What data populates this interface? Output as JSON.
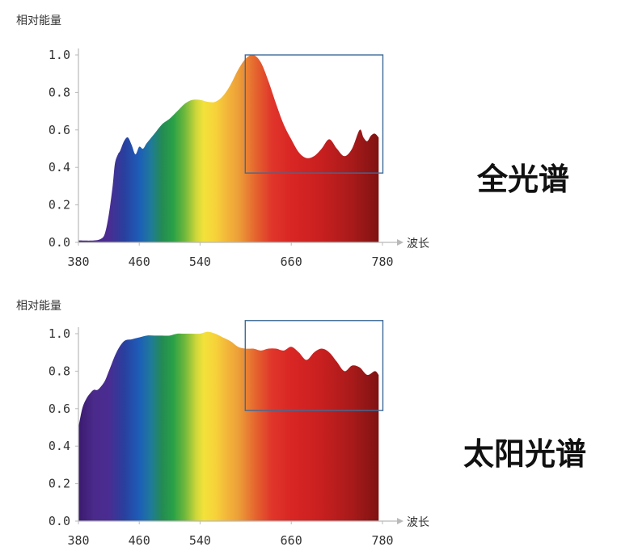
{
  "chart_data": [
    {
      "type": "area",
      "title": "全光谱",
      "ylabel": "相对能量",
      "xlabel": "波长",
      "xlim": [
        380,
        780
      ],
      "ylim": [
        0,
        1
      ],
      "xticks": [
        "380",
        "460",
        "540",
        "660",
        "780"
      ],
      "yticks": [
        "0.0",
        "0.2",
        "0.4",
        "0.6",
        "0.8",
        "1.0"
      ],
      "grid": false,
      "fill": "visible-spectrum gradient",
      "highlight_box": {
        "x": [
          600,
          780
        ],
        "y": [
          0.37,
          1.0
        ]
      },
      "x": [
        380,
        400,
        410,
        415,
        420,
        425,
        428,
        432,
        435,
        440,
        445,
        450,
        455,
        460,
        465,
        470,
        480,
        490,
        500,
        510,
        520,
        530,
        540,
        550,
        560,
        570,
        580,
        590,
        600,
        610,
        620,
        630,
        640,
        650,
        660,
        670,
        680,
        690,
        700,
        710,
        720,
        730,
        740,
        750,
        755,
        760,
        765,
        770,
        775
      ],
      "values": [
        0.01,
        0.01,
        0.02,
        0.05,
        0.15,
        0.3,
        0.42,
        0.47,
        0.49,
        0.54,
        0.56,
        0.52,
        0.47,
        0.51,
        0.5,
        0.53,
        0.58,
        0.63,
        0.66,
        0.7,
        0.74,
        0.76,
        0.76,
        0.75,
        0.75,
        0.78,
        0.84,
        0.92,
        0.98,
        1.0,
        0.96,
        0.86,
        0.74,
        0.63,
        0.55,
        0.48,
        0.45,
        0.46,
        0.5,
        0.55,
        0.5,
        0.46,
        0.5,
        0.6,
        0.56,
        0.54,
        0.57,
        0.58,
        0.56
      ]
    },
    {
      "type": "area",
      "title": "太阳光谱",
      "ylabel": "相对能量",
      "xlabel": "波长",
      "xlim": [
        380,
        780
      ],
      "ylim": [
        0,
        1
      ],
      "xticks": [
        "380",
        "460",
        "540",
        "660",
        "780"
      ],
      "yticks": [
        "0.0",
        "0.2",
        "0.4",
        "0.6",
        "0.8",
        "1.0"
      ],
      "grid": false,
      "fill": "visible-spectrum gradient",
      "highlight_box": {
        "x": [
          600,
          780
        ],
        "y": [
          0.59,
          1.07
        ]
      },
      "x": [
        380,
        385,
        390,
        395,
        400,
        405,
        410,
        415,
        420,
        430,
        440,
        450,
        460,
        470,
        480,
        490,
        500,
        510,
        520,
        530,
        540,
        550,
        560,
        570,
        580,
        590,
        600,
        610,
        620,
        630,
        640,
        650,
        660,
        670,
        680,
        690,
        700,
        710,
        720,
        730,
        740,
        750,
        760,
        770,
        775
      ],
      "values": [
        0.5,
        0.6,
        0.65,
        0.68,
        0.7,
        0.7,
        0.72,
        0.75,
        0.8,
        0.9,
        0.96,
        0.97,
        0.98,
        0.99,
        0.99,
        0.99,
        0.99,
        1.0,
        1.0,
        1.0,
        1.0,
        1.01,
        1.0,
        0.98,
        0.96,
        0.93,
        0.92,
        0.92,
        0.91,
        0.92,
        0.92,
        0.91,
        0.93,
        0.9,
        0.86,
        0.9,
        0.92,
        0.9,
        0.85,
        0.8,
        0.83,
        0.82,
        0.78,
        0.8,
        0.78
      ]
    }
  ]
}
